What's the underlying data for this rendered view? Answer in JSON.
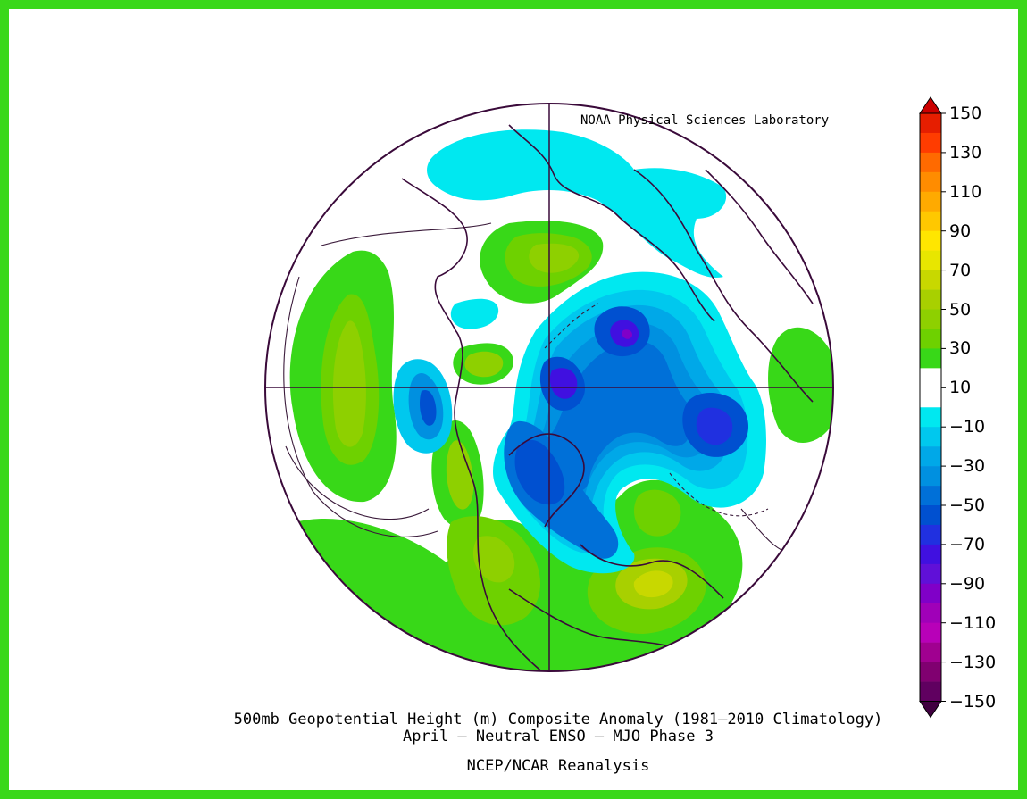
{
  "credit": "NOAA Physical Sciences Laboratory",
  "title_line1": "500mb Geopotential Height (m) Composite Anomaly (1981–2010 Climatology)",
  "title_line2": "April – Neutral ENSO – MJO Phase 3",
  "source": "NCEP/NCAR Reanalysis",
  "map": {
    "projection": "north-polar-stereographic",
    "variable": "500mb geopotential height anomaly",
    "units": "m"
  },
  "colorbar": {
    "levels": [
      -150,
      -140,
      -130,
      -120,
      -110,
      -100,
      -90,
      -80,
      -70,
      -60,
      -50,
      -40,
      -30,
      -20,
      -10,
      10,
      20,
      30,
      40,
      50,
      60,
      70,
      80,
      90,
      100,
      110,
      120,
      130,
      140,
      150
    ],
    "tick_labels": [
      "150",
      "130",
      "110",
      "90",
      "70",
      "50",
      "30",
      "10",
      "−10",
      "−30",
      "−50",
      "−70",
      "−90",
      "−110",
      "−130",
      "−150"
    ],
    "colors_top_to_bottom": [
      "#cc0000",
      "#e61e00",
      "#ff3c00",
      "#ff6a00",
      "#ff8c00",
      "#ffaa00",
      "#ffc800",
      "#ffe600",
      "#e8e600",
      "#c8d800",
      "#a8d000",
      "#8ed000",
      "#6ed100",
      "#38d818",
      "#ffffff",
      "#ffffff",
      "#00e8f0",
      "#00c8ee",
      "#00a8e8",
      "#0090e0",
      "#0070d8",
      "#0050d0",
      "#2030e0",
      "#4010e0",
      "#6010d8",
      "#8000c8",
      "#a000b8",
      "#b800b8",
      "#a00090",
      "#800070",
      "#600060",
      "#400040"
    ]
  }
}
